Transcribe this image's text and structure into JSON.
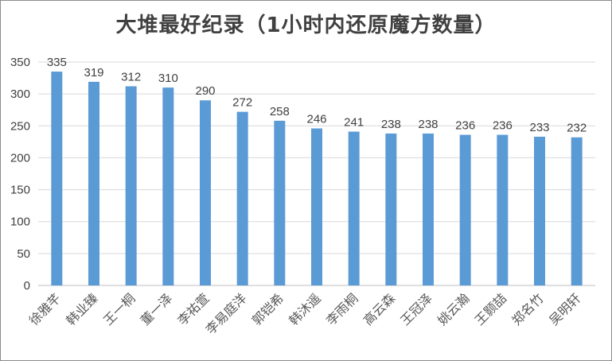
{
  "chart_data": {
    "type": "bar",
    "title": "大堆最好纪录（1小时内还原魔方数量）",
    "categories": [
      "徐雅芊",
      "韩业臻",
      "王一桐",
      "董一泽",
      "李祐萱",
      "李易庭洋",
      "郭铠希",
      "韩沐遥",
      "李雨桐",
      "高云森",
      "王冠泽",
      "姚云瀚",
      "王颢喆",
      "郑名竹",
      "吴明轩"
    ],
    "values": [
      335,
      319,
      312,
      310,
      290,
      272,
      258,
      246,
      241,
      238,
      238,
      236,
      236,
      233,
      232
    ],
    "yticks": [
      "0",
      "50",
      "100",
      "150",
      "200",
      "250",
      "300",
      "350"
    ],
    "ylim": [
      0,
      350
    ],
    "grid": true,
    "legend": "none",
    "bar_color": "#5b9bd5",
    "grid_color": "#d9d9d9"
  }
}
